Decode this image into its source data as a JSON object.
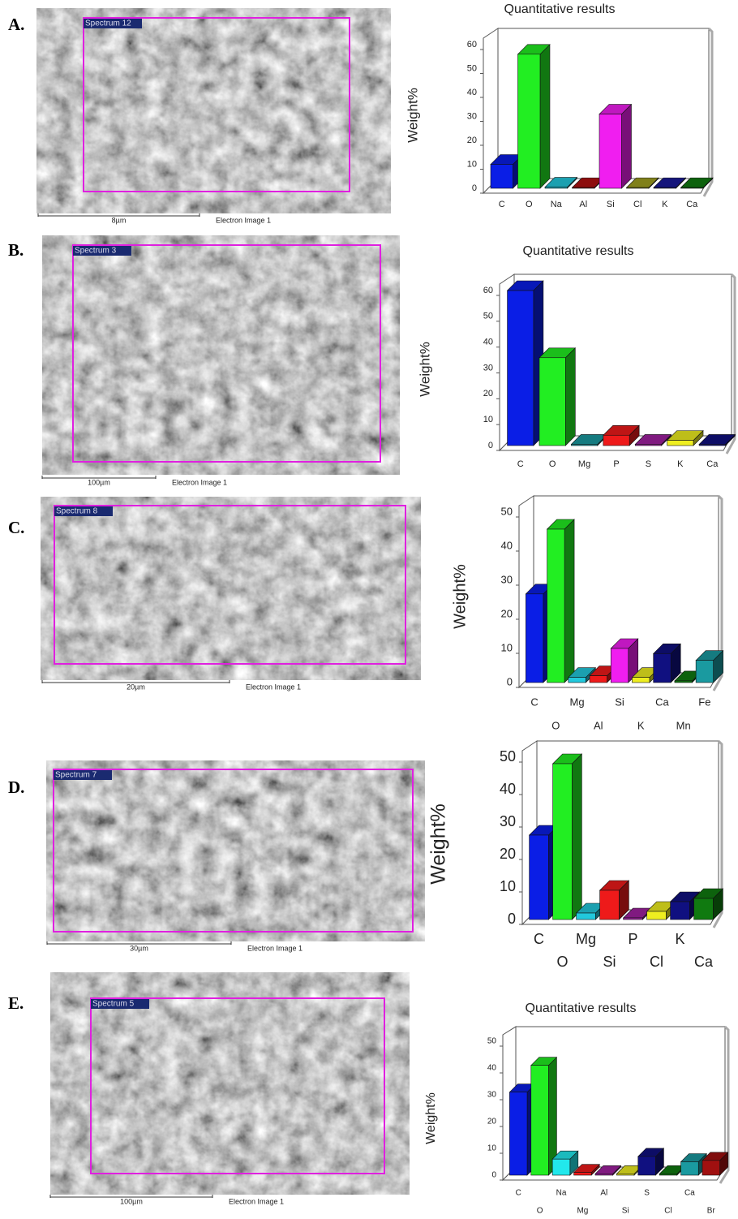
{
  "panels": [
    {
      "label": "A.",
      "spectrum": "Spectrum 12",
      "scale": "8µm",
      "caption": "Electron Image 1"
    },
    {
      "label": "B.",
      "spectrum": "Spectrum 3",
      "scale": "100µm",
      "caption": "Electron Image 1"
    },
    {
      "label": "C.",
      "spectrum": "Spectrum 8",
      "scale": "20µm",
      "caption": "Electron Image 1"
    },
    {
      "label": "D.",
      "spectrum": "Spectrum 7",
      "scale": "30µm",
      "caption": "Electron Image 1"
    },
    {
      "label": "E.",
      "spectrum": "Spectrum 5",
      "scale": "100µm",
      "caption": "Electron Image 1"
    }
  ],
  "chart_data": [
    {
      "type": "bar3d",
      "title": "Quantitative results",
      "ylabel": "Weight%",
      "categories": [
        "C",
        "O",
        "Na",
        "Al",
        "Si",
        "Cl",
        "K",
        "Ca"
      ],
      "values": [
        10,
        56,
        0.5,
        0.3,
        31,
        0.3,
        0.3,
        0.3
      ],
      "colors": [
        "#0a1ee6",
        "#22ee22",
        "#22c8dc",
        "#b01010",
        "#f01ef0",
        "#a0a020",
        "#1a1a9a",
        "#107a10"
      ],
      "ylim": [
        0,
        60
      ],
      "yticks": [
        0,
        10,
        20,
        30,
        40,
        50,
        60
      ]
    },
    {
      "type": "bar3d",
      "title": "Quantitative results",
      "ylabel": "Weight%",
      "categories": [
        "C",
        "O",
        "Mg",
        "P",
        "S",
        "K",
        "Ca"
      ],
      "values": [
        60,
        34,
        0.5,
        4,
        0.5,
        2,
        0.5
      ],
      "colors": [
        "#0a1ee6",
        "#22ee22",
        "#1a9aa0",
        "#ee1a1a",
        "#a020a0",
        "#eeee20",
        "#101080"
      ],
      "ylim": [
        0,
        60
      ],
      "yticks": [
        0,
        10,
        20,
        30,
        40,
        50,
        60
      ]
    },
    {
      "type": "bar3d",
      "ylabel": "Weight%",
      "categories": [
        "C",
        "O",
        "Mg",
        "Al",
        "Si",
        "K",
        "Ca",
        "Mn",
        "Fe"
      ],
      "values": [
        26,
        45,
        1.5,
        2,
        10,
        1.5,
        8.5,
        0.5,
        6.5
      ],
      "colors": [
        "#0a1ee6",
        "#22ee22",
        "#22c8dc",
        "#ee1a1a",
        "#f01ef0",
        "#eeee20",
        "#101080",
        "#107a10",
        "#1a9aa0"
      ],
      "ylim": [
        0,
        50
      ],
      "yticks": [
        0,
        10,
        20,
        30,
        40,
        50
      ]
    },
    {
      "type": "bar3d",
      "ylabel": "Weight%",
      "categories": [
        "C",
        "O",
        "Mg",
        "Si",
        "P",
        "Cl",
        "K",
        "Ca"
      ],
      "values": [
        26,
        48,
        2,
        9,
        0.5,
        2.5,
        5.5,
        6.5
      ],
      "colors": [
        "#0a1ee6",
        "#22ee22",
        "#22c8dc",
        "#ee1a1a",
        "#a020a0",
        "#eeee20",
        "#101080",
        "#107a10"
      ],
      "ylim": [
        0,
        50
      ],
      "yticks": [
        0,
        10,
        20,
        30,
        40,
        50
      ]
    },
    {
      "type": "bar3d",
      "title": "Quantitative results",
      "ylabel": "Weight%",
      "categories": [
        "C",
        "O",
        "Na",
        "Mg",
        "Al",
        "Si",
        "S",
        "Cl",
        "Ca",
        "Br"
      ],
      "values": [
        31,
        41,
        6,
        1,
        0.5,
        0.5,
        7,
        0.5,
        5,
        5.5
      ],
      "colors": [
        "#0a1ee6",
        "#22ee22",
        "#22e8ec",
        "#ee1a1a",
        "#a020a0",
        "#eeee20",
        "#101080",
        "#107a10",
        "#1a9aa0",
        "#a01010"
      ],
      "ylim": [
        0,
        50
      ],
      "yticks": [
        0,
        10,
        20,
        30,
        40,
        50
      ]
    }
  ]
}
